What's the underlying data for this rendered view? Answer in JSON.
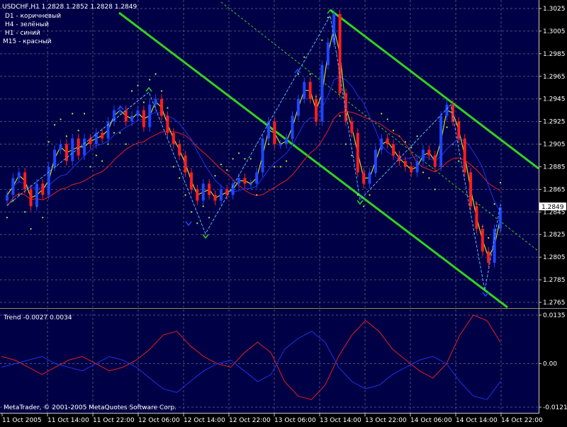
{
  "header": {
    "symbol_line": "USDCHF,H1  1.2828 1.2852 1.2828 1.2849",
    "legend": [
      "D1 - коричневый",
      "H4 - зелёный",
      "H1 - синий",
      "M15 - красный"
    ]
  },
  "price_axis": {
    "ticks": [
      "1.3025",
      "1.3005",
      "1.2985",
      "1.2965",
      "1.2945",
      "1.2925",
      "1.2905",
      "1.2885",
      "1.2865",
      "1.2845",
      "1.2825",
      "1.2805",
      "1.2785",
      "1.2765"
    ],
    "current_price": "1.2849"
  },
  "indicator": {
    "label": "Trend -0.0027 0.0034",
    "ticks": [
      "0.0135",
      "0.00",
      "-0.0121"
    ]
  },
  "time_axis": {
    "labels": [
      "11 Oct 2005",
      "11 Oct 14:00",
      "11 Oct 22:00",
      "12 Oct 06:00",
      "12 Oct 14:00",
      "12 Oct 22:00",
      "13 Oct 06:00",
      "13 Oct 14:00",
      "13 Oct 22:00",
      "14 Oct 06:00",
      "14 Oct 14:00",
      "14 Oct 22:00"
    ]
  },
  "footer": {
    "copyright": "MetaTrader, © 2001-2005 MetaQuotes Software Corp."
  },
  "colors": {
    "background": "#000000",
    "plot_bg": "#000046",
    "grid": "#8c8ca8",
    "up_bar": "#1e46ff",
    "down_bar": "#ff1e1e",
    "channel": "#32d21e",
    "dots": "#aaff32",
    "ma_blue": "#1e32e6",
    "ma_red": "#e61e1e",
    "zigzag": "#5ab4ff",
    "fast_line": "#c8dc28"
  },
  "chart_data": {
    "type": "candlestick",
    "symbol": "USDCHF",
    "timeframe": "H1",
    "ohlc_last": {
      "open": 1.2828,
      "high": 1.2852,
      "low": 1.2828,
      "close": 1.2849
    },
    "ylim": [
      1.2761,
      1.3031
    ],
    "grid": true,
    "close_approx": [
      1.286,
      1.2875,
      1.288,
      1.2865,
      1.285,
      1.287,
      1.286,
      1.2885,
      1.29,
      1.2905,
      1.289,
      1.291,
      1.2895,
      1.291,
      1.2905,
      1.2915,
      1.291,
      1.2925,
      1.2935,
      1.2935,
      1.2925,
      1.293,
      1.2935,
      1.292,
      1.294,
      1.2945,
      1.293,
      1.2915,
      1.2905,
      1.2895,
      1.288,
      1.2865,
      1.2855,
      1.287,
      1.286,
      1.2855,
      1.2865,
      1.286,
      1.287,
      1.2875,
      1.287,
      1.287,
      1.288,
      1.291,
      1.2925,
      1.2905,
      1.2905,
      1.291,
      1.293,
      1.2945,
      1.296,
      1.2945,
      1.2925,
      1.2975,
      1.2995,
      1.302,
      1.295,
      1.2925,
      1.2915,
      1.288,
      1.287,
      1.288,
      1.29,
      1.291,
      1.2905,
      1.2895,
      1.289,
      1.2885,
      1.288,
      1.289,
      1.29,
      1.2895,
      1.2885,
      1.293,
      1.294,
      1.2925,
      1.291,
      1.288,
      1.285,
      1.283,
      1.281,
      1.28,
      1.283,
      1.2849
    ],
    "indicator": {
      "name": "Trend",
      "values": [
        -0.0027,
        0.0034
      ],
      "ylim": [
        -0.0121,
        0.0135
      ],
      "series": [
        {
          "color": "red",
          "values": [
            0.002,
            0.001,
            -0.001,
            -0.003,
            -0.001,
            0.001,
            0.002,
            0.0,
            -0.002,
            -0.001,
            0.001,
            0.004,
            0.008,
            0.009,
            0.005,
            0.002,
            0.0,
            -0.001,
            0.003,
            0.006,
            0.003,
            -0.005,
            -0.009,
            -0.01,
            -0.006,
            0.002,
            0.008,
            0.012,
            0.009,
            0.004,
            0.001,
            -0.002,
            -0.004,
            0.0,
            0.008,
            0.0135,
            0.012,
            0.006
          ]
        },
        {
          "color": "blue",
          "values": [
            -0.001,
            0.0,
            0.001,
            0.002,
            0.0,
            -0.001,
            -0.002,
            0.0,
            0.002,
            0.001,
            -0.001,
            -0.004,
            -0.007,
            -0.008,
            -0.005,
            -0.002,
            0.0,
            0.001,
            -0.002,
            -0.005,
            -0.003,
            0.004,
            0.007,
            0.009,
            0.006,
            -0.001,
            -0.005,
            -0.007,
            -0.006,
            -0.003,
            -0.001,
            0.001,
            0.002,
            0.0,
            -0.005,
            -0.009,
            -0.01,
            -0.005
          ]
        }
      ]
    }
  }
}
